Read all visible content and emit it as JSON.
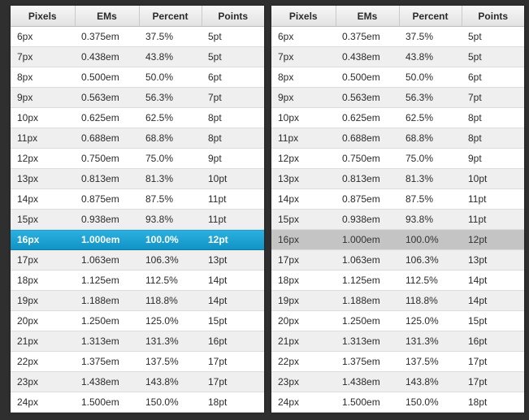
{
  "tables": [
    {
      "headers": [
        "Pixels",
        "EMs",
        "Percent",
        "Points"
      ],
      "highlight_color": "#1ba3d4",
      "rows": [
        [
          "6px",
          "0.375em",
          "37.5%",
          "5pt"
        ],
        [
          "7px",
          "0.438em",
          "43.8%",
          "5pt"
        ],
        [
          "8px",
          "0.500em",
          "50.0%",
          "6pt"
        ],
        [
          "9px",
          "0.563em",
          "56.3%",
          "7pt"
        ],
        [
          "10px",
          "0.625em",
          "62.5%",
          "8pt"
        ],
        [
          "11px",
          "0.688em",
          "68.8%",
          "8pt"
        ],
        [
          "12px",
          "0.750em",
          "75.0%",
          "9pt"
        ],
        [
          "13px",
          "0.813em",
          "81.3%",
          "10pt"
        ],
        [
          "14px",
          "0.875em",
          "87.5%",
          "11pt"
        ],
        [
          "15px",
          "0.938em",
          "93.8%",
          "11pt"
        ],
        [
          "16px",
          "1.000em",
          "100.0%",
          "12pt"
        ],
        [
          "17px",
          "1.063em",
          "106.3%",
          "13pt"
        ],
        [
          "18px",
          "1.125em",
          "112.5%",
          "14pt"
        ],
        [
          "19px",
          "1.188em",
          "118.8%",
          "14pt"
        ],
        [
          "20px",
          "1.250em",
          "125.0%",
          "15pt"
        ],
        [
          "21px",
          "1.313em",
          "131.3%",
          "16pt"
        ],
        [
          "22px",
          "1.375em",
          "137.5%",
          "17pt"
        ],
        [
          "23px",
          "1.438em",
          "143.8%",
          "17pt"
        ],
        [
          "24px",
          "1.500em",
          "150.0%",
          "18pt"
        ]
      ]
    },
    {
      "headers": [
        "Pixels",
        "EMs",
        "Percent",
        "Points"
      ],
      "highlight_color": "#c4c4c4",
      "rows": [
        [
          "6px",
          "0.375em",
          "37.5%",
          "5pt"
        ],
        [
          "7px",
          "0.438em",
          "43.8%",
          "5pt"
        ],
        [
          "8px",
          "0.500em",
          "50.0%",
          "6pt"
        ],
        [
          "9px",
          "0.563em",
          "56.3%",
          "7pt"
        ],
        [
          "10px",
          "0.625em",
          "62.5%",
          "8pt"
        ],
        [
          "11px",
          "0.688em",
          "68.8%",
          "8pt"
        ],
        [
          "12px",
          "0.750em",
          "75.0%",
          "9pt"
        ],
        [
          "13px",
          "0.813em",
          "81.3%",
          "10pt"
        ],
        [
          "14px",
          "0.875em",
          "87.5%",
          "11pt"
        ],
        [
          "15px",
          "0.938em",
          "93.8%",
          "11pt"
        ],
        [
          "16px",
          "1.000em",
          "100.0%",
          "12pt"
        ],
        [
          "17px",
          "1.063em",
          "106.3%",
          "13pt"
        ],
        [
          "18px",
          "1.125em",
          "112.5%",
          "14pt"
        ],
        [
          "19px",
          "1.188em",
          "118.8%",
          "14pt"
        ],
        [
          "20px",
          "1.250em",
          "125.0%",
          "15pt"
        ],
        [
          "21px",
          "1.313em",
          "131.3%",
          "16pt"
        ],
        [
          "22px",
          "1.375em",
          "137.5%",
          "17pt"
        ],
        [
          "23px",
          "1.438em",
          "143.8%",
          "17pt"
        ],
        [
          "24px",
          "1.500em",
          "150.0%",
          "18pt"
        ]
      ]
    }
  ],
  "highlighted_row_index": 10
}
